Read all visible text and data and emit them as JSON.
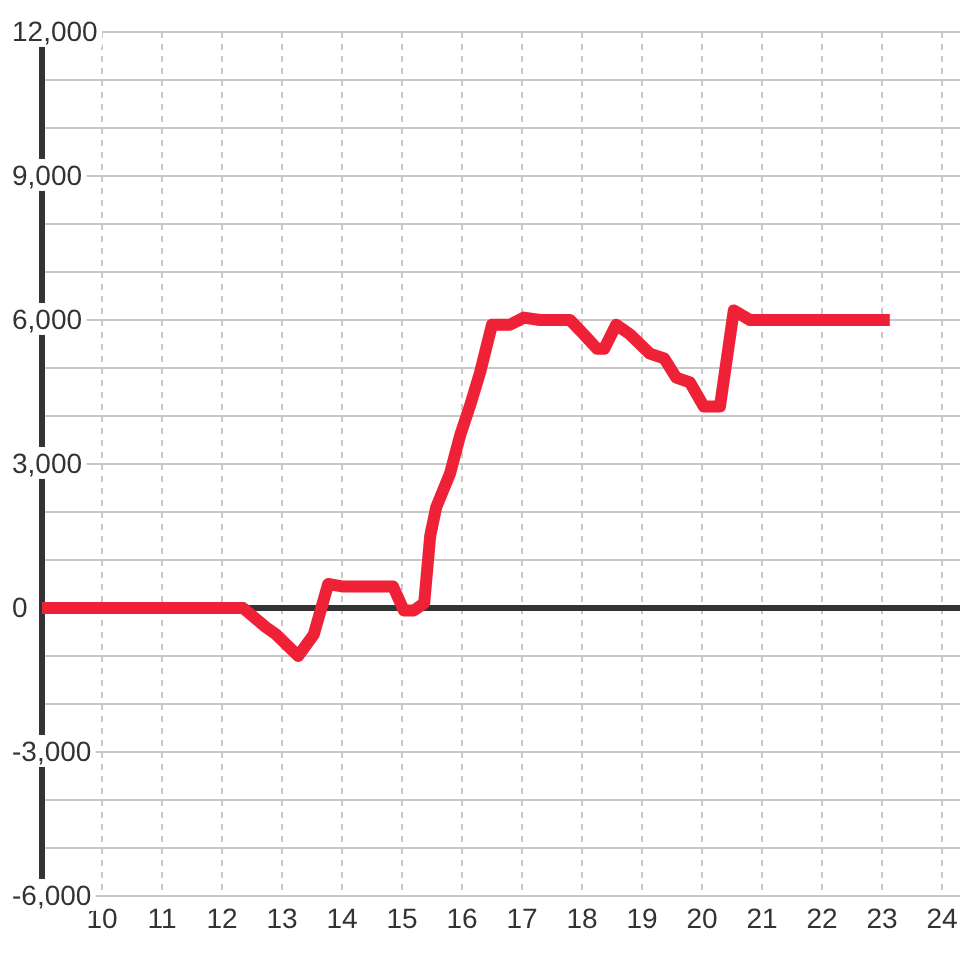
{
  "chart_data": {
    "type": "line",
    "x": [
      9,
      12.35,
      12.73,
      12.9,
      13.27,
      13.53,
      13.77,
      14.0,
      14.85,
      15.03,
      15.2,
      15.37,
      15.47,
      15.57,
      15.8,
      15.97,
      16.13,
      16.3,
      16.5,
      16.8,
      17.03,
      17.3,
      17.8,
      18.03,
      18.25,
      18.37,
      18.57,
      18.8,
      19.13,
      19.37,
      19.57,
      19.8,
      20.03,
      20.3,
      20.53,
      20.8,
      23.13
    ],
    "series": [
      {
        "color": "#ef2136",
        "values": [
          0,
          0,
          -400,
          -550,
          -1000,
          -550,
          500,
          450,
          450,
          -50,
          -50,
          100,
          1500,
          2100,
          2800,
          3600,
          4200,
          4900,
          5900,
          5900,
          6050,
          6000,
          6000,
          5700,
          5400,
          5400,
          5900,
          5700,
          5300,
          5200,
          4800,
          4700,
          4200,
          4200,
          6200,
          6000,
          6000
        ]
      }
    ],
    "xlim": [
      9,
      24.3
    ],
    "xticks": [
      10,
      11,
      12,
      13,
      14,
      15,
      16,
      17,
      18,
      19,
      20,
      21,
      22,
      23,
      24
    ],
    "ylim": [
      -6000,
      12000
    ],
    "yticks": [
      {
        "value": -6000,
        "label": "-6,000"
      },
      {
        "value": -5000,
        "label": null
      },
      {
        "value": -4000,
        "label": null
      },
      {
        "value": -3000,
        "label": "-3,000"
      },
      {
        "value": -2000,
        "label": null
      },
      {
        "value": -1000,
        "label": null
      },
      0,
      {
        "value": 1000,
        "label": null
      },
      {
        "value": 2000,
        "label": null
      },
      {
        "value": 3000,
        "label": "3,000"
      },
      {
        "value": 4000,
        "label": null
      },
      {
        "value": 5000,
        "label": null
      },
      {
        "value": 6000,
        "label": "6,000"
      },
      {
        "value": 7000,
        "label": null
      },
      {
        "value": 8000,
        "label": null
      },
      {
        "value": 9000,
        "label": "9,000"
      },
      {
        "value": 10000,
        "label": null
      },
      {
        "value": 11000,
        "label": null
      },
      {
        "value": 12000,
        "label": "12,000"
      }
    ],
    "ref_lines": [
      {
        "axis": "y",
        "value": 0,
        "color": "#333333"
      }
    ],
    "grid": true,
    "marker": "none",
    "line_style": "solid"
  }
}
